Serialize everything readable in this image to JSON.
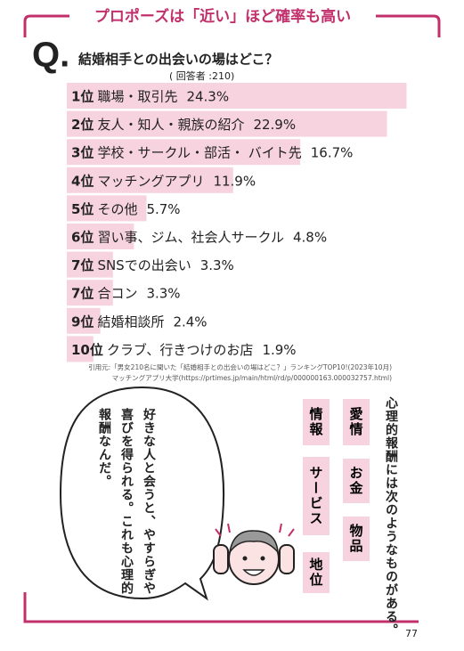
{
  "header": {
    "title": "プロポーズは「近い」ほど確率も高い"
  },
  "question_mark": "Q.",
  "chart_data": {
    "type": "bar",
    "title": "結婚相手との出会いの場はどこ？",
    "subtitle": "( 回答者 :210)",
    "ranks": [
      "1位",
      "2位",
      "3位",
      "4位",
      "5位",
      "6位",
      "7位",
      "7位",
      "9位",
      "10位"
    ],
    "categories": [
      "職場・取引先",
      "友人・知人・親族の紹介",
      "学校・サークル・部活・ バイト先",
      "マッチングアプリ",
      "その他",
      "習い事、ジム、社会人サークル",
      "SNSでの出会い",
      "合コン",
      "結婚相談所",
      "クラブ、行きつけのお店"
    ],
    "values": [
      24.3,
      22.9,
      16.7,
      11.9,
      5.7,
      4.8,
      3.3,
      3.3,
      2.4,
      1.9
    ],
    "value_labels": [
      "24.3%",
      "22.9%",
      "16.7%",
      "11.9%",
      "5.7%",
      "4.8%",
      "3.3%",
      "3.3%",
      "2.4%",
      "1.9%"
    ],
    "color": "#f7d3df",
    "source": [
      "引用元:「男女210名に聞いた「結婚相手との出会いの場はどこ？」ランキングTOP10!(2023年10月)",
      "マッチングアプリ大学(https://prtimes.jp/main/html/rd/p/000000163.000032757.html)"
    ]
  },
  "bubble_lines": [
    "好きな人と会うと、やすらぎや",
    "喜びを得られる。これも心理的",
    "報酬なんだ。"
  ],
  "right_text": "心理的報酬には次のようなものがある。",
  "reward_boxes": [
    "愛情",
    "情報",
    "お金",
    "サービス",
    "物品",
    "地位"
  ],
  "page_number": "77"
}
